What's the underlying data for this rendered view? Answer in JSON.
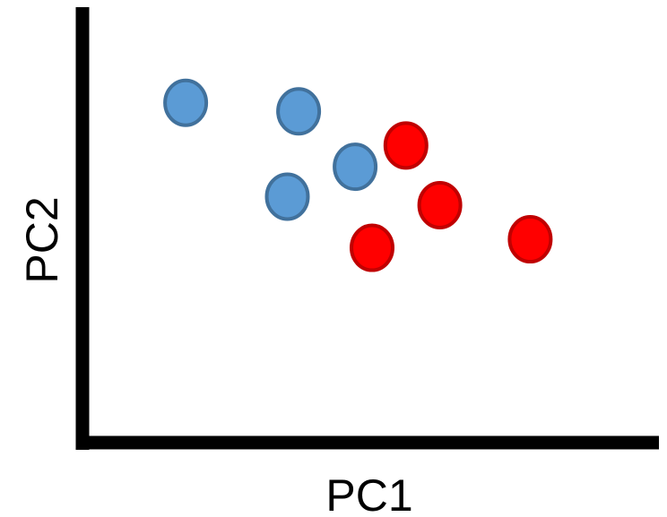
{
  "chart_data": {
    "type": "scatter",
    "title": "",
    "xlabel": "PC1",
    "ylabel": "PC2",
    "xlim": [
      0,
      100
    ],
    "ylim": [
      0,
      100
    ],
    "grid": false,
    "ticks": false,
    "series": [
      {
        "color": "#5b9bd5",
        "edge_color": "#41719c",
        "points": [
          {
            "x": 17,
            "y": 78
          },
          {
            "x": 37,
            "y": 76
          },
          {
            "x": 47,
            "y": 63
          },
          {
            "x": 35,
            "y": 56
          }
        ]
      },
      {
        "color": "#ff0000",
        "edge_color": "#c00000",
        "points": [
          {
            "x": 56,
            "y": 68
          },
          {
            "x": 62,
            "y": 54
          },
          {
            "x": 50,
            "y": 44
          },
          {
            "x": 78,
            "y": 46
          }
        ]
      }
    ]
  }
}
